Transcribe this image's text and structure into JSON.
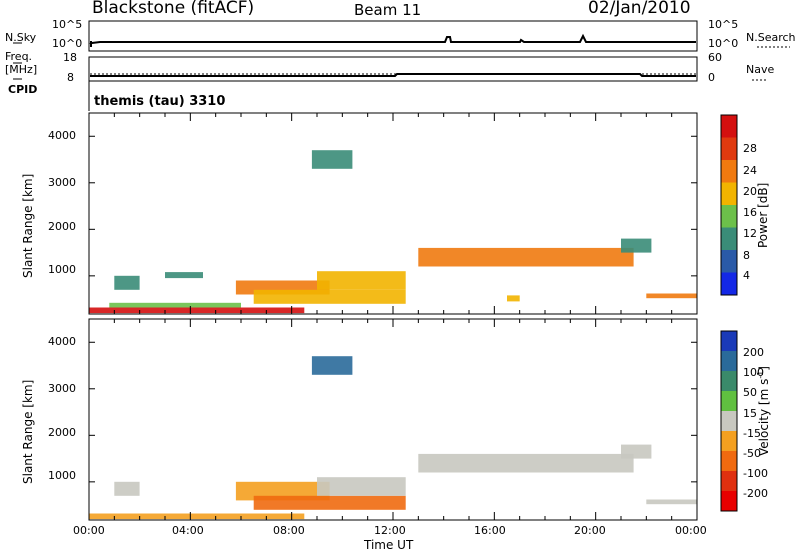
{
  "header": {
    "title": "Blackstone (fitACF)",
    "beam": "Beam 11",
    "date": "02/Jan/2010"
  },
  "strips": {
    "nsky_label": "N.Sky",
    "nsky_ticks": [
      "10^5",
      "10^0"
    ],
    "nsearch_label": "N.Search",
    "nsearch_ticks": [
      "10^5",
      "10^0"
    ],
    "freq_label": "Freq.",
    "freq_unit": "[MHz]",
    "freq_ticks": [
      "18",
      "8"
    ],
    "nave_label": "Nave",
    "nave_ticks": [
      "60",
      "0"
    ],
    "cpid_label": "CPID",
    "cpid_text": "themis (tau) 3310"
  },
  "axes": {
    "ylabel": "Slant Range [km]",
    "xlabel": "Time UT",
    "x_ticks": [
      "00:00",
      "04:00",
      "08:00",
      "12:00",
      "16:00",
      "20:00",
      "00:00"
    ],
    "y_ticks": [
      "1000",
      "2000",
      "3000",
      "4000"
    ]
  },
  "power_colorbar": {
    "label": "Power [dB]",
    "ticks": [
      "4",
      "8",
      "12",
      "16",
      "20",
      "24",
      "28"
    ],
    "colors": [
      "#1428e6",
      "#2a5aa8",
      "#3a8c78",
      "#6cc04a",
      "#f2b400",
      "#f07a10",
      "#e03a10",
      "#d41010"
    ]
  },
  "velocity_colorbar": {
    "label": "Velocity [m s-1]",
    "label_main": "Velocity [m s",
    "label_sup": "-1",
    "label_end": "]",
    "ticks": [
      "200",
      "100",
      "50",
      "15",
      "-15",
      "-50",
      "-100",
      "-200"
    ],
    "colors": [
      "#1a3ab8",
      "#2a6a9a",
      "#3a8a6a",
      "#60c040",
      "#c8c8c0",
      "#f4a020",
      "#f06a10",
      "#e03010",
      "#e80000"
    ]
  },
  "chart_data": [
    {
      "type": "heatmap",
      "title": "Power",
      "xlabel": "Time UT",
      "ylabel": "Slant Range [km]",
      "xlim": [
        0,
        24
      ],
      "ylim": [
        180,
        4500
      ],
      "colorbar_label": "Power [dB]",
      "colorbar_range": [
        0,
        30
      ],
      "regions": [
        {
          "t": [
            0.0,
            8.5
          ],
          "r": [
            200,
            320
          ],
          "level": 28
        },
        {
          "t": [
            0.8,
            6.0
          ],
          "r": [
            320,
            420
          ],
          "level": 12
        },
        {
          "t": [
            1.0,
            2.0
          ],
          "r": [
            700,
            1000
          ],
          "level": 8
        },
        {
          "t": [
            3.0,
            4.5
          ],
          "r": [
            950,
            1080
          ],
          "level": 8
        },
        {
          "t": [
            5.8,
            9.5
          ],
          "r": [
            600,
            900
          ],
          "level": 22
        },
        {
          "t": [
            6.5,
            12.5
          ],
          "r": [
            400,
            700
          ],
          "level": 16
        },
        {
          "t": [
            9.0,
            12.5
          ],
          "r": [
            700,
            1100
          ],
          "level": 18
        },
        {
          "t": [
            8.8,
            10.4
          ],
          "r": [
            3300,
            3700
          ],
          "level": 8
        },
        {
          "t": [
            13.0,
            21.5
          ],
          "r": [
            1200,
            1600
          ],
          "level": 20
        },
        {
          "t": [
            16.5,
            17.0
          ],
          "r": [
            450,
            580
          ],
          "level": 18
        },
        {
          "t": [
            21.0,
            22.2
          ],
          "r": [
            1500,
            1800
          ],
          "level": 10
        },
        {
          "t": [
            22.0,
            24.0
          ],
          "r": [
            520,
            620
          ],
          "level": 20
        }
      ]
    },
    {
      "type": "heatmap",
      "title": "Velocity",
      "xlabel": "Time UT",
      "ylabel": "Slant Range [km]",
      "xlim": [
        0,
        24
      ],
      "ylim": [
        180,
        4500
      ],
      "colorbar_label": "Velocity [m s-1]",
      "colorbar_range": [
        -200,
        200
      ],
      "regions": [
        {
          "t": [
            0.0,
            8.5
          ],
          "r": [
            200,
            320
          ],
          "value": -20
        },
        {
          "t": [
            1.0,
            2.0
          ],
          "r": [
            700,
            1000
          ],
          "value": 0
        },
        {
          "t": [
            5.8,
            9.5
          ],
          "r": [
            600,
            1000
          ],
          "value": -50
        },
        {
          "t": [
            6.5,
            12.5
          ],
          "r": [
            400,
            700
          ],
          "value": -60
        },
        {
          "t": [
            9.0,
            12.5
          ],
          "r": [
            700,
            1100
          ],
          "value": 0
        },
        {
          "t": [
            8.8,
            10.4
          ],
          "r": [
            3300,
            3700
          ],
          "value": 150
        },
        {
          "t": [
            13.0,
            21.5
          ],
          "r": [
            1200,
            1600
          ],
          "value": 0
        },
        {
          "t": [
            21.0,
            22.2
          ],
          "r": [
            1500,
            1800
          ],
          "value": 0
        },
        {
          "t": [
            22.0,
            24.0
          ],
          "r": [
            520,
            620
          ],
          "value": 0
        }
      ]
    }
  ]
}
